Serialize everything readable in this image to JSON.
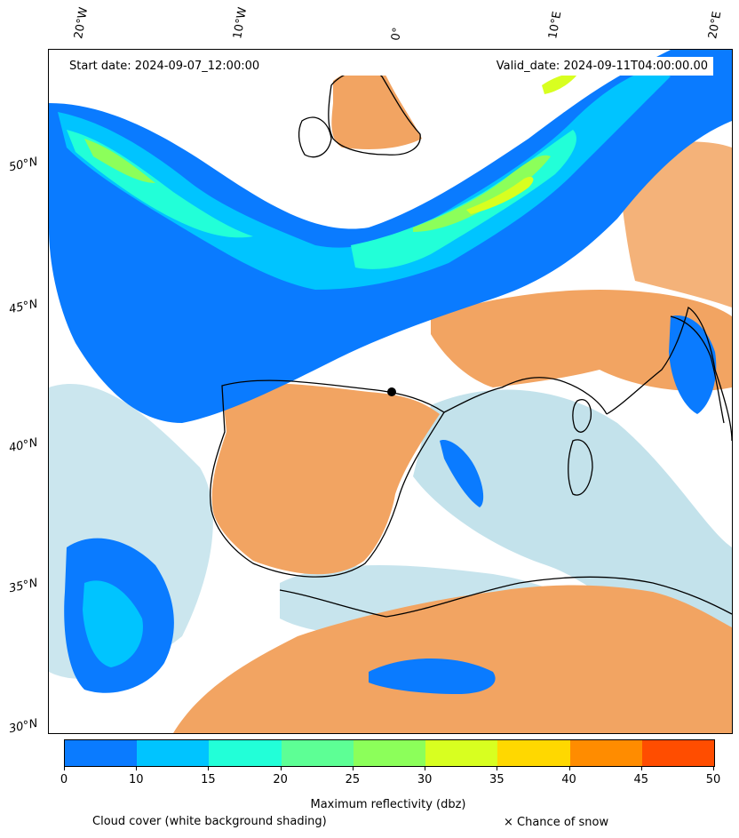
{
  "header": {
    "start_date": "Start date: 2024-09-07_12:00:00",
    "valid_date": "Valid_date: 2024-09-11T04:00:00.00"
  },
  "axes": {
    "lon_labels": [
      "20°W",
      "10°W",
      "0°",
      "10°E",
      "20°E"
    ],
    "lat_labels": [
      "50°N",
      "45°N",
      "40°N",
      "35°N",
      "30°N"
    ]
  },
  "colorbar": {
    "ticks": [
      "0",
      "10",
      "15",
      "20",
      "25",
      "30",
      "35",
      "40",
      "45",
      "50"
    ],
    "colors": [
      "#0a7bff",
      "#00c4ff",
      "#22ffd8",
      "#5dff95",
      "#8cff5a",
      "#d8ff20",
      "#ffd800",
      "#ff8c00",
      "#ff4d00"
    ],
    "title": "Maximum reflectivity (dbz)"
  },
  "legend": {
    "cloud_cover": "Cloud cover (white background shading)",
    "snow": "× Chance of snow"
  },
  "map_colors": {
    "land_clear": "#f2a462",
    "cloud_light": "#b9dde8",
    "cloud_white": "#ffffff",
    "coastline": "#000000"
  }
}
